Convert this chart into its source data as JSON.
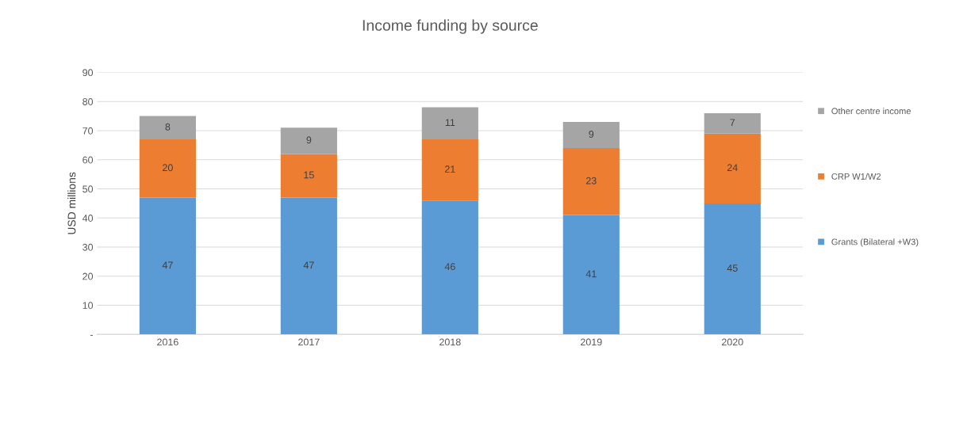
{
  "chart_data": {
    "type": "bar",
    "title": "Income funding by source",
    "ylabel": "USD millions",
    "categories": [
      "2016",
      "2017",
      "2018",
      "2019",
      "2020"
    ],
    "series": [
      {
        "name": "Grants (Bilateral +W3)",
        "color": "#5b9bd5",
        "values": [
          47,
          47,
          46,
          41,
          45
        ]
      },
      {
        "name": "CRP W1/W2",
        "color": "#ed7d31",
        "values": [
          20,
          15,
          21,
          23,
          24
        ]
      },
      {
        "name": "Other centre income",
        "color": "#a5a5a5",
        "values": [
          8,
          9,
          11,
          9,
          7
        ]
      }
    ],
    "stacked": true,
    "data_labels": true,
    "ylim": [
      0,
      90
    ],
    "yticks": [
      {
        "value": 0,
        "label": "-"
      },
      10,
      20,
      30,
      40,
      50,
      60,
      70,
      80,
      90
    ],
    "grid": "y",
    "legend": "right"
  }
}
